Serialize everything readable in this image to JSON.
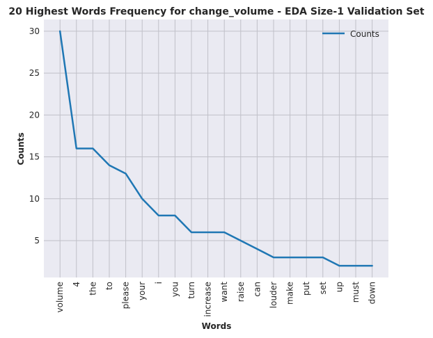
{
  "chart_data": {
    "type": "line",
    "title": "20 Highest Words Frequency for change_volume - EDA Size-1 Validation Set",
    "xlabel": "Words",
    "ylabel": "Counts",
    "categories": [
      "volume",
      "4",
      "the",
      "to",
      "please",
      "your",
      "i",
      "you",
      "turn",
      "increase",
      "want",
      "raise",
      "can",
      "louder",
      "make",
      "put",
      "set",
      "up",
      "must",
      "down"
    ],
    "series": [
      {
        "name": "Counts",
        "values": [
          30,
          16,
          16,
          14,
          13,
          10,
          8,
          8,
          6,
          6,
          6,
          5,
          4,
          3,
          3,
          3,
          3,
          2,
          2,
          2
        ]
      }
    ],
    "ylim": [
      0.6,
      31.4
    ],
    "yticks": [
      5,
      10,
      15,
      20,
      25,
      30
    ],
    "grid": true,
    "legend_position": "top-right",
    "colors": {
      "line": "#1f77b4",
      "background": "#eaeaf2",
      "grid": "#c0c0c8"
    }
  }
}
